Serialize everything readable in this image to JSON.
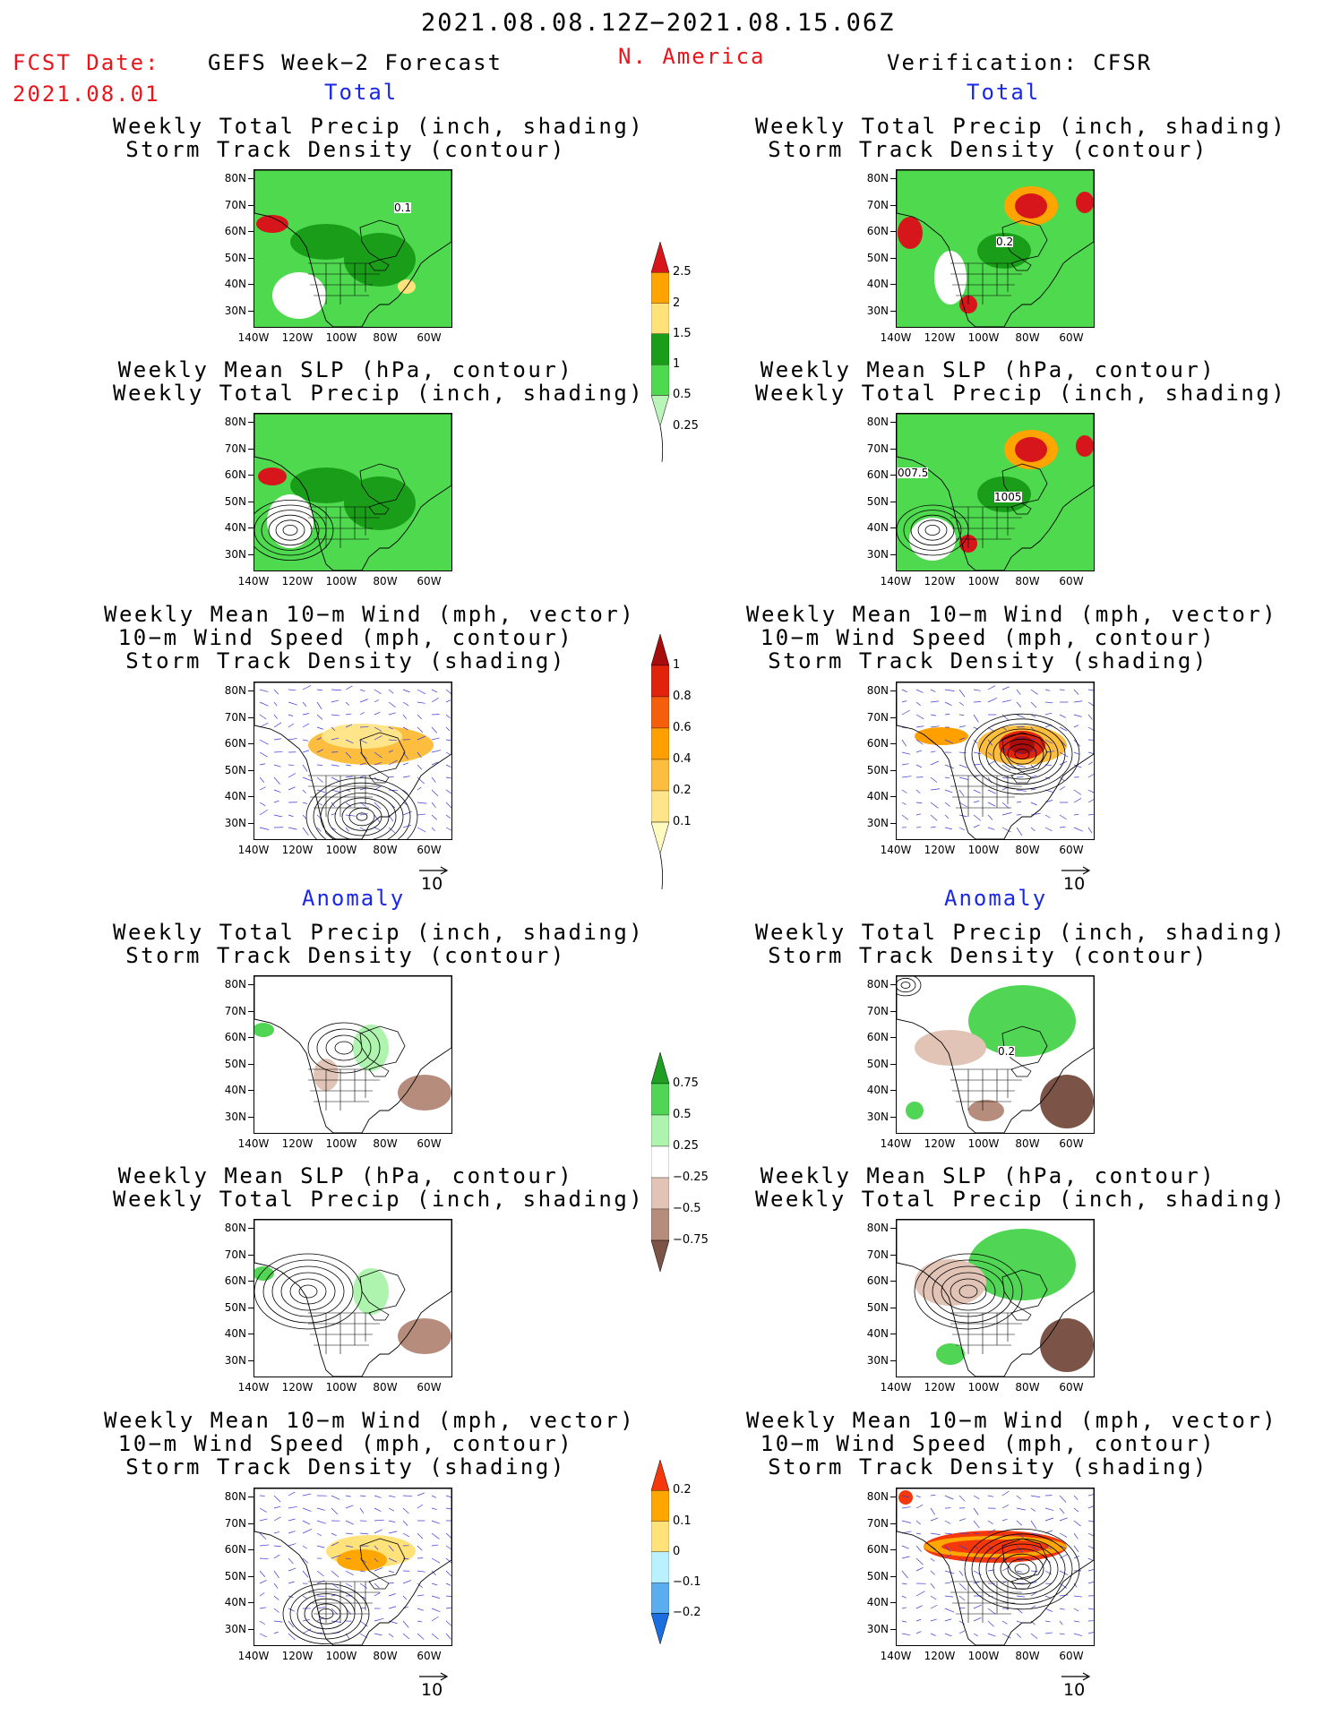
{
  "header": {
    "period": "2021.08.08.12Z−2021.08.15.06Z",
    "fcst_date_label": "FCST Date:",
    "fcst_date": "2021.08.01",
    "left_title": "GEFS Week−2 Forecast",
    "region": "N. America",
    "right_title": "Verification: CFSR",
    "total_label": "Total",
    "anomaly_label": "Anomaly"
  },
  "panel_titles": {
    "precip_track": "Weekly Total Precip (inch, shading)\nStorm Track Density (contour)",
    "slp_precip": "Weekly Mean SLP (hPa, contour)\nWeekly Total Precip (inch, shading)",
    "wind_track": "Weekly Mean 10−m Wind (mph, vector)\n10−m Wind Speed (mph, contour)\nStorm Track Density (shading)"
  },
  "axes": {
    "lat_ticks": [
      "80N",
      "70N",
      "60N",
      "50N",
      "40N",
      "30N"
    ],
    "lon_ticks": [
      "140W",
      "120W",
      "100W",
      "80W",
      "60W"
    ]
  },
  "vector_ref": "10",
  "map_annotations": {
    "fc_precip_track": "0.1",
    "vf_precip_track": "0.2",
    "vf_slp_precip_a": "007.5",
    "vf_slp_precip_b": "1005",
    "vf_anom_precip_track": "0.2"
  },
  "colorbars": {
    "precip_total": {
      "labels": [
        "2.5",
        "2",
        "1.5",
        "1",
        "0.5",
        "0.25"
      ],
      "colors": [
        "#d6161a",
        "#ffa400",
        "#ffe27a",
        "#1a9e1a",
        "#4fd94f",
        "#b9f5b9"
      ]
    },
    "track_total": {
      "labels": [
        "1",
        "0.8",
        "0.6",
        "0.4",
        "0.2",
        "0.1"
      ],
      "colors": [
        "#a70d0d",
        "#e2230c",
        "#f55e0b",
        "#ffa000",
        "#fdbd3e",
        "#ffe58a",
        "#fffac0"
      ]
    },
    "precip_anom": {
      "labels": [
        "0.75",
        "0.5",
        "0.25",
        "−0.25",
        "−0.5",
        "−0.75"
      ],
      "colors": [
        "#1f9e23",
        "#51d554",
        "#aef3ae",
        "#ffffff",
        "#e2c4b6",
        "#b68d7d",
        "#7b5447"
      ]
    },
    "track_anom": {
      "labels": [
        "0.2",
        "0.1",
        "0",
        "−0.1",
        "−0.2"
      ],
      "colors": [
        "#f5380b",
        "#ffa600",
        "#ffe27a",
        "#b9f1ff",
        "#5aaef0",
        "#1a6ee0"
      ]
    }
  },
  "colors": {
    "red": "#e8161b",
    "blue": "#1a28e6"
  }
}
